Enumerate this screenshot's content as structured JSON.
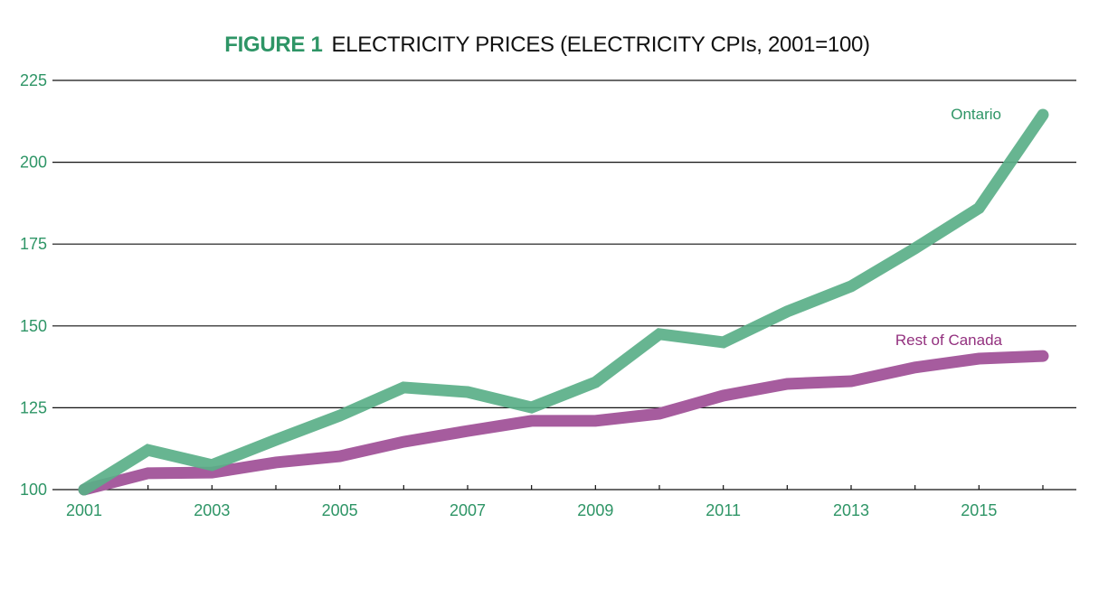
{
  "chart_data": {
    "type": "line",
    "title_prefix": "FIGURE 1",
    "title": "ELECTRICITY PRICES (ELECTRICITY CPIs, 2001=100)",
    "xlabel": "",
    "ylabel": "",
    "x": [
      2001,
      2002,
      2003,
      2004,
      2005,
      2006,
      2007,
      2008,
      2009,
      2010,
      2011,
      2012,
      2013,
      2014,
      2015,
      2016
    ],
    "x_tick_labels": [
      "2001",
      "2003",
      "2005",
      "2007",
      "2009",
      "2011",
      "2013",
      "2015"
    ],
    "x_tick_values": [
      2001,
      2003,
      2005,
      2007,
      2009,
      2011,
      2013,
      2015
    ],
    "xlim": [
      2001,
      2016
    ],
    "ylim": [
      100,
      225
    ],
    "y_ticks": [
      100,
      125,
      150,
      175,
      200,
      225
    ],
    "y_tick_labels": [
      "100",
      "125",
      "150",
      "175",
      "200",
      "225"
    ],
    "grid": "horizontal",
    "legend": "inline labels near line ends",
    "series": [
      {
        "name": "Ontario",
        "color": "#5aaf88",
        "label_color": "#2e9566",
        "values": [
          100,
          112.1,
          107.5,
          115.2,
          122.6,
          131.2,
          129.8,
          125.1,
          132.8,
          147.5,
          145.0,
          154.4,
          162.1,
          173.7,
          186.0,
          214.5
        ]
      },
      {
        "name": "Rest of Canada",
        "color": "#a65c9e",
        "label_color": "#93317f",
        "values": [
          100,
          105.0,
          105.2,
          108.3,
          110.2,
          114.6,
          117.9,
          121.0,
          121.0,
          123.2,
          128.7,
          132.3,
          133.1,
          137.3,
          140.0,
          140.8
        ]
      }
    ]
  }
}
